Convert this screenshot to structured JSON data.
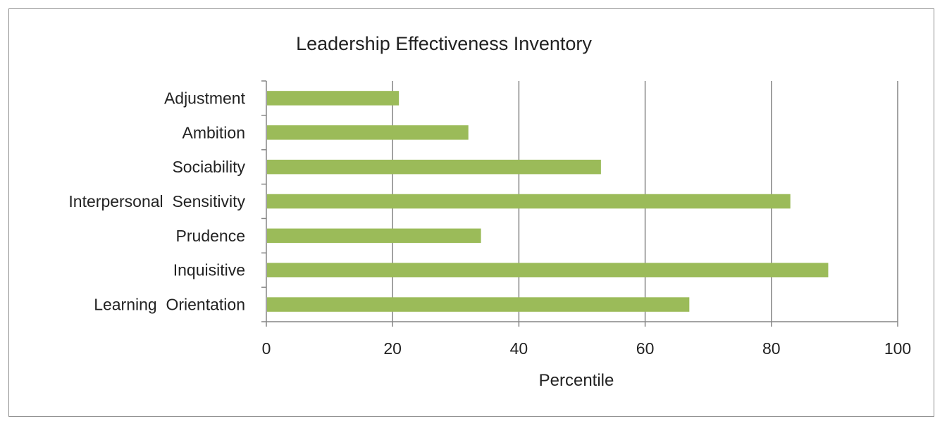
{
  "chart_data": {
    "type": "bar",
    "orientation": "horizontal",
    "title": "Leadership Effectiveness Inventory",
    "xlabel": "Percentile",
    "ylabel": "",
    "categories": [
      "Adjustment",
      "Ambition",
      "Sociability",
      "Interpersonal  Sensitivity",
      "Prudence",
      "Inquisitive",
      "Learning  Orientation"
    ],
    "values": [
      21,
      32,
      53,
      83,
      34,
      89,
      67
    ],
    "xlim": [
      0,
      100
    ],
    "xticks": [
      "0",
      "20",
      "40",
      "60",
      "80",
      "100"
    ],
    "grid": "vertical",
    "legend": "none",
    "bar_color": "#9bbb59",
    "grid_color": "#868686"
  }
}
